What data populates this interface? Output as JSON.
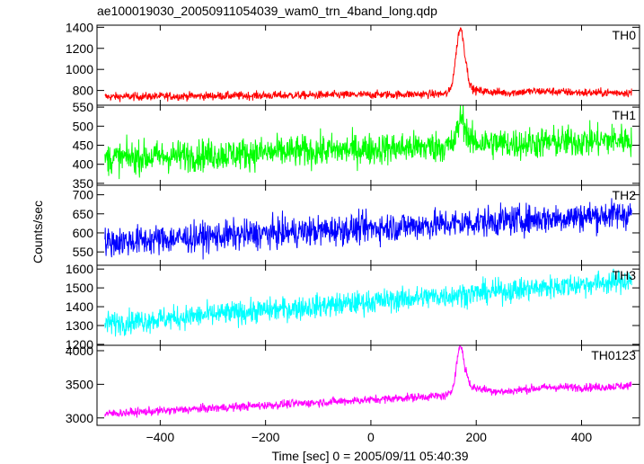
{
  "chart_data": {
    "type": "line",
    "title": "ae100019030_20050911054039_wam0_trn_4band_long.qdp",
    "xlabel": "Time [sec] 0 = 2005/09/11 05:40:39",
    "ylabel": "Counts/sec",
    "xlim": [
      -520,
      510
    ],
    "x_data_range": [
      -505,
      495
    ],
    "xticks": [
      -400,
      -200,
      0,
      200,
      400
    ],
    "grid": false,
    "panels": [
      {
        "name": "TH0",
        "color": "#ff0000",
        "ylim": [
          660,
          1420
        ],
        "yticks": [
          800,
          1000,
          1200,
          1400
        ],
        "baseline_start": 740,
        "baseline_end": 780,
        "noise": 28,
        "peak": {
          "t": 170,
          "height": 620,
          "width": 12
        },
        "post_level": [
          180,
          260,
          40
        ],
        "late_bump": {
          "t": 320,
          "height": 20,
          "width": 60
        }
      },
      {
        "name": "TH1",
        "color": "#00ff00",
        "ylim": [
          345,
          555
        ],
        "yticks": [
          350,
          400,
          450,
          500,
          550
        ],
        "baseline_start": 415,
        "baseline_end": 465,
        "noise": 30,
        "peak": {
          "t": 172,
          "height": 75,
          "width": 10
        },
        "post_level": [
          180,
          260,
          10
        ],
        "late_bump": {
          "t": 0,
          "height": 0,
          "width": 1
        }
      },
      {
        "name": "TH2",
        "color": "#0000ff",
        "ylim": [
          515,
          725
        ],
        "yticks": [
          550,
          600,
          650,
          700
        ],
        "baseline_start": 575,
        "baseline_end": 650,
        "noise": 28,
        "peak": {
          "t": 0,
          "height": 0,
          "width": 1
        },
        "post_level": [
          0,
          0,
          0
        ],
        "late_bump": {
          "t": 0,
          "height": 0,
          "width": 1
        }
      },
      {
        "name": "TH3",
        "color": "#00ffff",
        "ylim": [
          1195,
          1620
        ],
        "yticks": [
          1200,
          1300,
          1400,
          1500,
          1600
        ],
        "baseline_start": 1310,
        "baseline_end": 1540,
        "noise": 45,
        "peak": {
          "t": 0,
          "height": 0,
          "width": 1
        },
        "post_level": [
          0,
          0,
          0
        ],
        "late_bump": {
          "t": 0,
          "height": 0,
          "width": 1
        }
      },
      {
        "name": "TH0123",
        "color": "#ff00ff",
        "ylim": [
          2890,
          4080
        ],
        "yticks": [
          3000,
          3500,
          4000
        ],
        "baseline_start": 3060,
        "baseline_end": 3480,
        "noise": 45,
        "peak": {
          "t": 170,
          "height": 720,
          "width": 11
        },
        "post_level": [
          180,
          250,
          120
        ],
        "late_bump": {
          "t": 330,
          "height": 40,
          "width": 70
        }
      }
    ]
  }
}
